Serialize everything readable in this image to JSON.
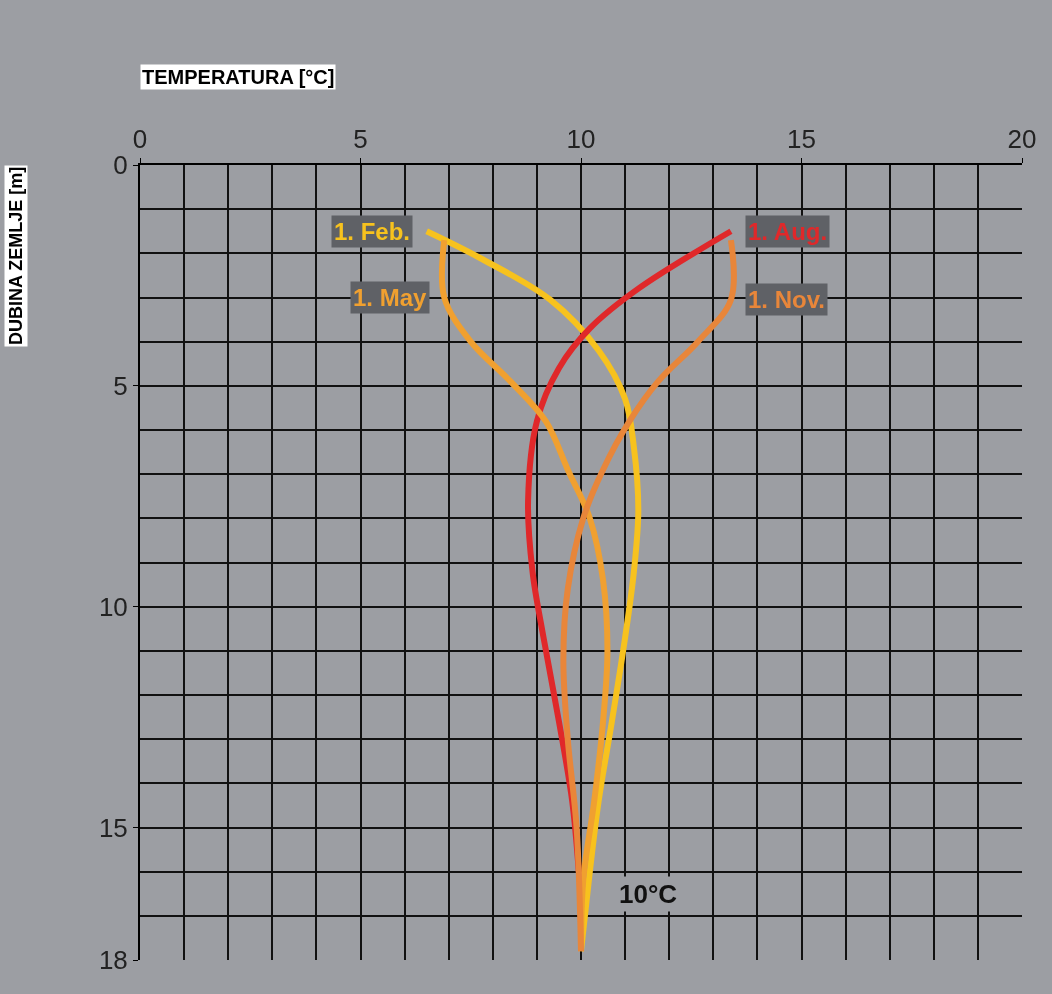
{
  "chart_data": {
    "type": "line",
    "xlabel": "TEMPERATURA [°C]",
    "ylabel": "DUBINA ZEMLJE [m]",
    "xlim": [
      0,
      20
    ],
    "xticks": [
      0,
      5,
      10,
      15,
      20
    ],
    "ylim": [
      18,
      0
    ],
    "yticks": [
      0,
      5,
      10,
      15,
      18
    ],
    "grid": true,
    "legend": false,
    "marker": "none",
    "line_style": "solid",
    "series": [
      {
        "name": "1. Feb.",
        "color": "#f7c21e",
        "x": [
          6.5,
          7.7,
          9.3,
          10.4,
          11.0,
          11.2,
          11.3,
          11.2,
          11.0,
          10.7,
          10.4,
          10.2,
          10.0
        ],
        "values": [
          1.5,
          2.1,
          3.05,
          4.2,
          5.3,
          6.4,
          7.8,
          9.2,
          10.7,
          12.6,
          14.4,
          16.0,
          17.8
        ]
      },
      {
        "name": "1. Aug.",
        "color": "#e0282a",
        "x": [
          13.4,
          11.3,
          10.2,
          9.5,
          9.0,
          8.8,
          8.9,
          9.15,
          9.5,
          9.8,
          9.95
        ],
        "values": [
          1.5,
          2.8,
          3.7,
          4.6,
          5.8,
          7.6,
          9.2,
          10.7,
          12.6,
          14.4,
          16.0
        ]
      },
      {
        "name": "1. May",
        "color": "#f0a030",
        "x": [
          6.9,
          6.9,
          7.5,
          8.4,
          9.2,
          9.7,
          10.2,
          10.5,
          10.6,
          10.5,
          10.3,
          10.05,
          10.0
        ],
        "values": [
          1.7,
          3.0,
          4.0,
          4.9,
          5.8,
          6.9,
          8.0,
          9.4,
          11.0,
          12.6,
          14.4,
          16.2,
          17.8
        ]
      },
      {
        "name": "1. Nov.",
        "color": "#e8863a",
        "x": [
          13.4,
          13.4,
          12.65,
          11.75,
          11.1,
          10.5,
          10.05,
          9.7,
          9.6,
          9.7,
          9.9,
          10.0
        ],
        "values": [
          1.7,
          3.05,
          4.0,
          4.9,
          5.8,
          6.9,
          8.0,
          9.6,
          11.2,
          13.0,
          15.0,
          17.8
        ]
      }
    ],
    "annotations": [
      "10°C"
    ]
  }
}
